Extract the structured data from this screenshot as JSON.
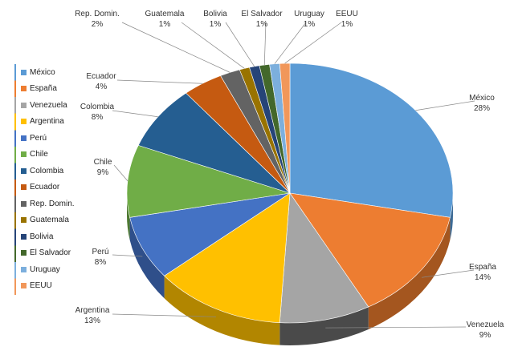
{
  "chart_data": {
    "type": "pie",
    "title": "",
    "style": "3d-pie",
    "legend_position": "left",
    "slices": [
      {
        "label": "México",
        "value": 28,
        "value_label": "28%",
        "color": "#5B9BD5",
        "side": "#3d6b96"
      },
      {
        "label": "España",
        "value": 14,
        "value_label": "14%",
        "color": "#ED7D31",
        "side": "#a4561f"
      },
      {
        "label": "Venezuela",
        "value": 9,
        "value_label": "9%",
        "color": "#A5A5A5",
        "side": "#4a4a4a"
      },
      {
        "label": "Argentina",
        "value": 13,
        "value_label": "13%",
        "color": "#FFC000",
        "side": "#b28600"
      },
      {
        "label": "Perú",
        "value": 8,
        "value_label": "8%",
        "color": "#4472C4",
        "side": "#2f4f8a"
      },
      {
        "label": "Chile",
        "value": 9,
        "value_label": "9%",
        "color": "#70AD47",
        "side": "#4e7932"
      },
      {
        "label": "Colombia",
        "value": 8,
        "value_label": "8%",
        "color": "#255E91",
        "side": "#193f62"
      },
      {
        "label": "Ecuador",
        "value": 4,
        "value_label": "4%",
        "color": "#C55A11",
        "side": "#8a3f0c"
      },
      {
        "label": "Rep. Domin.",
        "value": 2,
        "value_label": "2%",
        "color": "#636363",
        "side": "#444444"
      },
      {
        "label": "Guatemala",
        "value": 1,
        "value_label": "1%",
        "color": "#997300",
        "side": "#6b5000"
      },
      {
        "label": "Bolivia",
        "value": 1,
        "value_label": "1%",
        "color": "#264478",
        "side": "#1a2f54"
      },
      {
        "label": "El Salvador",
        "value": 1,
        "value_label": "1%",
        "color": "#43682B",
        "side": "#2f491e"
      },
      {
        "label": "Uruguay",
        "value": 1,
        "value_label": "1%",
        "color": "#7CAFDD",
        "side": "#567a9b"
      },
      {
        "label": "EEUU",
        "value": 1,
        "value_label": "1%",
        "color": "#F1975A",
        "side": "#a9693f"
      }
    ]
  }
}
